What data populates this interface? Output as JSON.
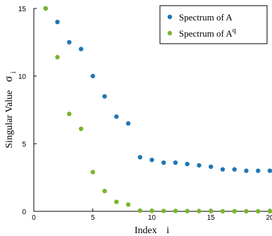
{
  "chart_data": {
    "type": "scatter",
    "xlabel": "Index",
    "xlabel_sub": "i",
    "ylabel": "Singular Value",
    "ylabel_sub": "σ",
    "ylabel_subscript": "i",
    "xlim": [
      0,
      20
    ],
    "ylim": [
      0,
      15
    ],
    "x_ticks": [
      0,
      5,
      10,
      15,
      20
    ],
    "y_ticks": [
      0,
      5,
      10,
      15
    ],
    "grid": false,
    "legend_position": "top-right",
    "series": [
      {
        "name": "Spectrum of A",
        "legend_base": "Spectrum of A",
        "legend_sup": "",
        "color": "#1f77b4",
        "x": [
          1,
          2,
          3,
          4,
          5,
          6,
          7,
          8,
          9,
          10,
          11,
          12,
          13,
          14,
          15,
          16,
          17,
          18,
          19,
          20
        ],
        "y": [
          15,
          14,
          12.5,
          12,
          10,
          8.5,
          7,
          6.5,
          4,
          3.8,
          3.6,
          3.6,
          3.5,
          3.4,
          3.3,
          3.1,
          3.1,
          3.0,
          3.0,
          3.0
        ]
      },
      {
        "name": "Spectrum of A^q",
        "legend_base": "Spectrum of A",
        "legend_sup": "q",
        "color": "#77b52a",
        "x": [
          1,
          2,
          3,
          4,
          5,
          6,
          7,
          8,
          9,
          10,
          11,
          12,
          13,
          14,
          15,
          16,
          17,
          18,
          19,
          20
        ],
        "y": [
          15,
          11.4,
          7.2,
          6.1,
          2.9,
          1.5,
          0.7,
          0.5,
          0.05,
          0.04,
          0.03,
          0.03,
          0.02,
          0.02,
          0.02,
          0.01,
          0.01,
          0.01,
          0.01,
          0.01
        ]
      }
    ]
  }
}
